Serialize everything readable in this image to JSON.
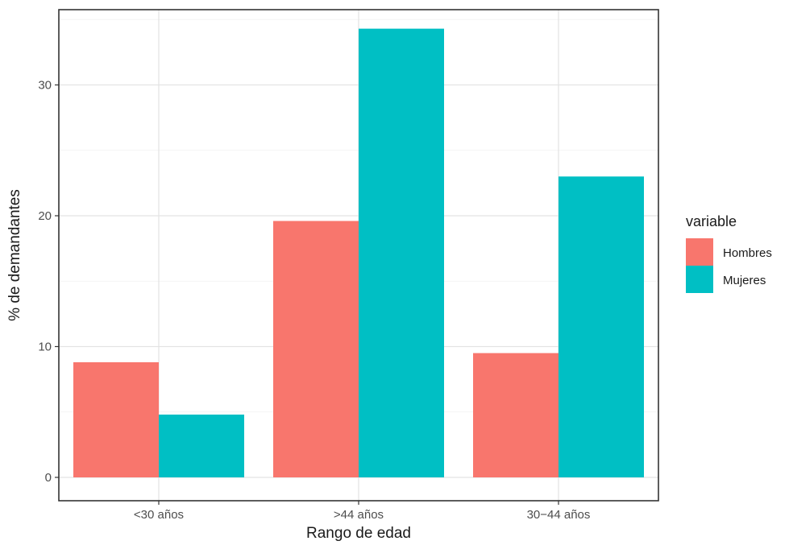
{
  "chart_data": {
    "type": "bar",
    "categories": [
      "<30 años",
      ">44 años",
      "30−44 años"
    ],
    "series": [
      {
        "name": "Hombres",
        "values": [
          8.8,
          19.6,
          9.5
        ],
        "color": "#F8766D"
      },
      {
        "name": "Mujeres",
        "values": [
          4.8,
          34.3,
          23.0
        ],
        "color": "#00BFC4"
      }
    ],
    "xlabel": "Rango de edad",
    "ylabel": "% de demandantes",
    "ylim": [
      0,
      35.6
    ],
    "yticks": [
      0,
      10,
      20,
      30
    ],
    "grid": true,
    "legend": {
      "title": "variable",
      "position": "right"
    }
  }
}
